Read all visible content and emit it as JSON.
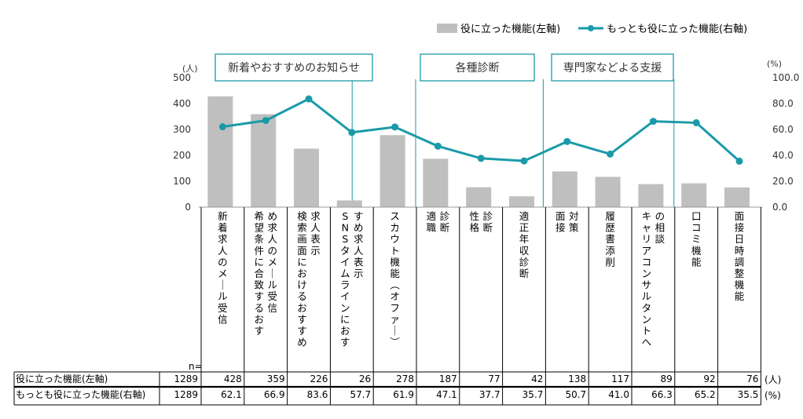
{
  "legend": {
    "bar_label": "役に立った機能(左軸)",
    "line_label": "もっとも役に立った機能(右軸)"
  },
  "axes": {
    "left_unit": "(人)",
    "right_unit": "(%)",
    "left_ticks": [
      "0",
      "100",
      "200",
      "300",
      "400",
      "500"
    ],
    "right_ticks": [
      "0.0",
      "20.0",
      "40.0",
      "60.0",
      "80.0",
      "100.0"
    ]
  },
  "groups": [
    "新着やおすすめのお知らせ",
    "各種診断",
    "専門家などよる支援"
  ],
  "table": {
    "n_label": "n=",
    "row1_label": "役に立った機能(左軸)",
    "row2_label": "もっとも役に立った機能(右軸)",
    "row1_n": "1289",
    "row2_n": "1289",
    "row1_unit": "(人)",
    "row2_unit": "(%)",
    "row1_values": [
      "428",
      "359",
      "226",
      "26",
      "278",
      "187",
      "77",
      "42",
      "138",
      "117",
      "89",
      "92",
      "76"
    ],
    "row2_values": [
      "62.1",
      "66.9",
      "83.6",
      "57.7",
      "61.9",
      "47.1",
      "37.7",
      "35.7",
      "50.7",
      "41.0",
      "66.3",
      "65.2",
      "35.5"
    ]
  },
  "colors": {
    "bar": "#bfbfbf",
    "line": "#1a9aa8",
    "frame": "#1a9aa8"
  },
  "chart_data": {
    "type": "bar",
    "categories": [
      "新着求人のメール受信",
      "希望条件に合致するおすすめ求人のメール受信",
      "検索画面におけるおすすめ求人表示",
      "SNSタイムラインにおすすめ求人表示",
      "スカウト機能(オファー)",
      "適職診断",
      "性格診断",
      "適正年収診断",
      "面接対策",
      "履歴書添削",
      "キャリアコンサルタントへの相談",
      "口コミ機能",
      "面接日時調整機能"
    ],
    "category_lines": [
      [
        "新着求人のメール受信"
      ],
      [
        "希望条件に合致するおす",
        "め求人のメール受信"
      ],
      [
        "検索画面におけるおすすめ",
        "求人表示"
      ],
      [
        "SNSタイムラインにおす",
        "すめ求人表示"
      ],
      [
        "スカウト機能(オファー)"
      ],
      [
        "適職",
        "診断"
      ],
      [
        "性格",
        "診断"
      ],
      [
        "適正年収診断"
      ],
      [
        "面接",
        "対策"
      ],
      [
        "履歴書添削"
      ],
      [
        "キャリアコンサルタントへ",
        "の相談"
      ],
      [
        "口コミ機能"
      ],
      [
        "面接日時調整機能"
      ]
    ],
    "series": [
      {
        "name": "役に立った機能(左軸)",
        "type": "bar",
        "axis": "left",
        "values": [
          428,
          359,
          226,
          26,
          278,
          187,
          77,
          42,
          138,
          117,
          89,
          92,
          76
        ]
      },
      {
        "name": "もっとも役に立った機能(右軸)",
        "type": "line",
        "axis": "right",
        "values": [
          62.1,
          66.9,
          83.6,
          57.7,
          61.9,
          47.1,
          37.7,
          35.7,
          50.7,
          41.0,
          66.3,
          65.2,
          35.5
        ]
      }
    ],
    "ylim_left": [
      0,
      500
    ],
    "ylim_right": [
      0,
      100
    ],
    "grid": false,
    "legend_position": "top-right"
  }
}
